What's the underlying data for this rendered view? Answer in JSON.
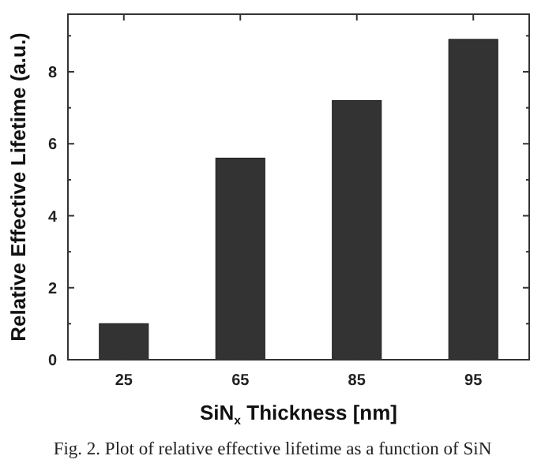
{
  "chart_data": {
    "type": "bar",
    "xlabel": "SiN$_{x}$ Thickness [nm]",
    "ylabel": "Relative Effective Lifetime (a.u.)",
    "categories": [
      "25",
      "65",
      "85",
      "95"
    ],
    "values": [
      1.0,
      5.6,
      7.2,
      8.9
    ],
    "color": "#333333",
    "ylim": [
      0,
      9.6
    ],
    "yticks": [
      0,
      2,
      4,
      6,
      8
    ],
    "grid": false,
    "annotations": [
      "Fig. 2. Plot of relative effective lifetime as a function of SiN"
    ]
  }
}
